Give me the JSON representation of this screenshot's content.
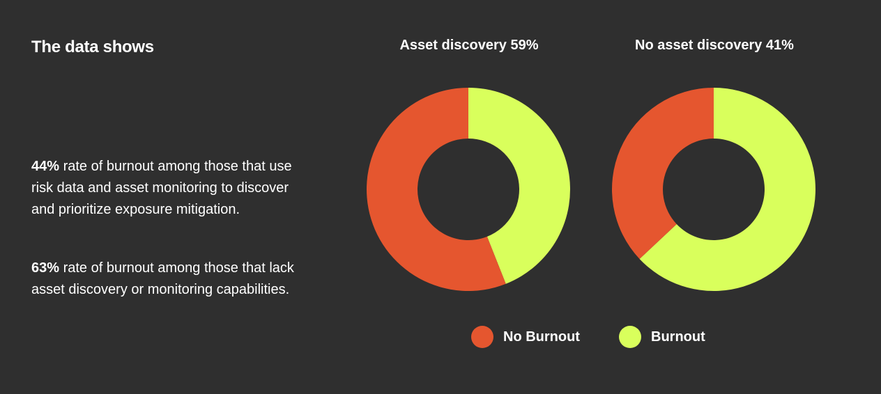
{
  "heading": "The data shows",
  "paragraphs": [
    {
      "bold": "44%",
      "text": " rate of burnout among those that use risk data and asset monitoring to discover and prioritize exposure mitigation."
    },
    {
      "bold": "63%",
      "text": " rate of burnout among those that lack asset discovery or monitoring capabilities."
    }
  ],
  "colors": {
    "background": "#2f2f2f",
    "no_burnout": "#e5562f",
    "burnout": "#d9ff5c"
  },
  "chart_data": [
    {
      "type": "pie",
      "style": "donut",
      "title": "Asset discovery 59%",
      "categories": [
        "Burnout",
        "No Burnout"
      ],
      "values": [
        44,
        56
      ]
    },
    {
      "type": "pie",
      "style": "donut",
      "title": "No asset discovery 41%",
      "categories": [
        "Burnout",
        "No Burnout"
      ],
      "values": [
        63,
        37
      ]
    }
  ],
  "legend": [
    {
      "label": "No Burnout",
      "color": "#e5562f"
    },
    {
      "label": "Burnout",
      "color": "#d9ff5c"
    }
  ]
}
